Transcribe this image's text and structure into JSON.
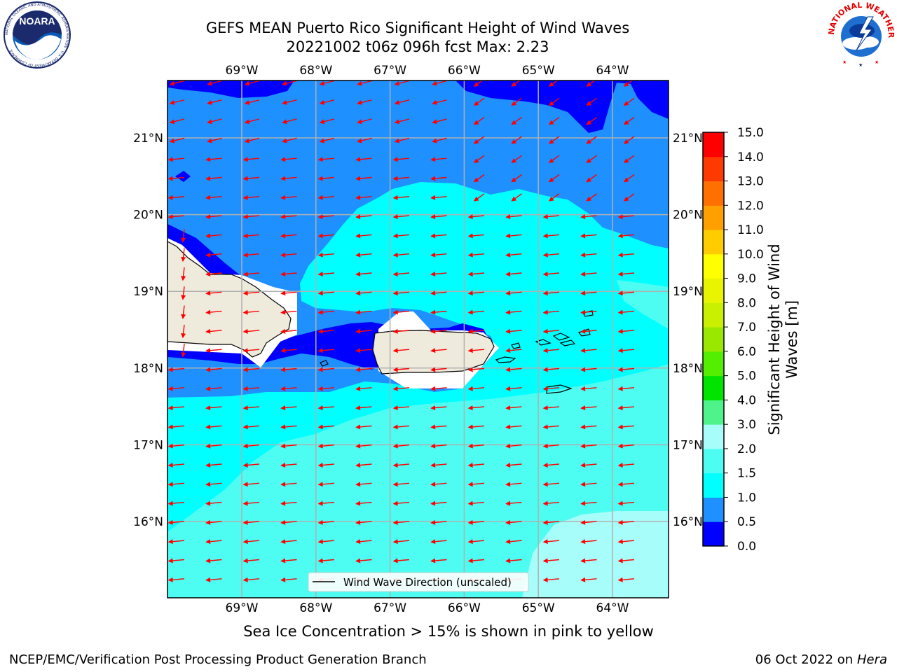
{
  "header": {
    "title_line1": "GEFS MEAN Puerto Rico Significant Height of Wind Waves",
    "title_line2": "20221002 t06z 096h fcst   Max: 2.23"
  },
  "logos": {
    "left": {
      "name": "NOARA",
      "ring_text": "NATIONAL OCEANIC AND ATMOSPHERIC ADMINISTRATION · U.S. DEPARTMENT OF COMMERCE"
    },
    "right": {
      "ring_text": "NATIONAL WEATHER SERVICE"
    }
  },
  "map": {
    "lon_labels": [
      "69°W",
      "68°W",
      "67°W",
      "66°W",
      "65°W",
      "64°W"
    ],
    "lat_labels": [
      "21°N",
      "20°N",
      "19°N",
      "18°N",
      "17°N",
      "16°N"
    ],
    "legend_label": "Wind Wave Direction (unscaled)",
    "arrow_color": "#ff0000",
    "land_color": "#efebdc",
    "gridline_color": "#b0b0b0"
  },
  "colorbar": {
    "label": "Significant Height of Wind Waves [m]",
    "ticks": [
      "0.0",
      "0.5",
      "1.0",
      "1.5",
      "2.0",
      "3.0",
      "4.0",
      "5.0",
      "6.0",
      "7.0",
      "8.0",
      "9.0",
      "10.0",
      "11.0",
      "12.0",
      "13.0",
      "14.0",
      "15.0"
    ],
    "colors": [
      "#0000ff",
      "#1e90ff",
      "#00ffff",
      "#4efdf1",
      "#a7fdf9",
      "#4ff38b",
      "#00e400",
      "#53ee00",
      "#9ae800",
      "#c9f000",
      "#e8f400",
      "#ffff00",
      "#ffcc00",
      "#ff9f00",
      "#ff7000",
      "#ff3a00",
      "#ff0000"
    ]
  },
  "field_colors": {
    "dark": "#0000ff",
    "mid": "#1e90ff",
    "cyan": "#00ffff",
    "light": "#4efdf1",
    "pale": "#a7fdf9"
  },
  "caption": "Sea Ice Concentration > 15% is shown in pink to yellow",
  "footer": {
    "left": "NCEP/EMC/Verification Post Processing Product Generation Branch",
    "right_date": "06 Oct 2022 on ",
    "right_host": "Hera"
  }
}
